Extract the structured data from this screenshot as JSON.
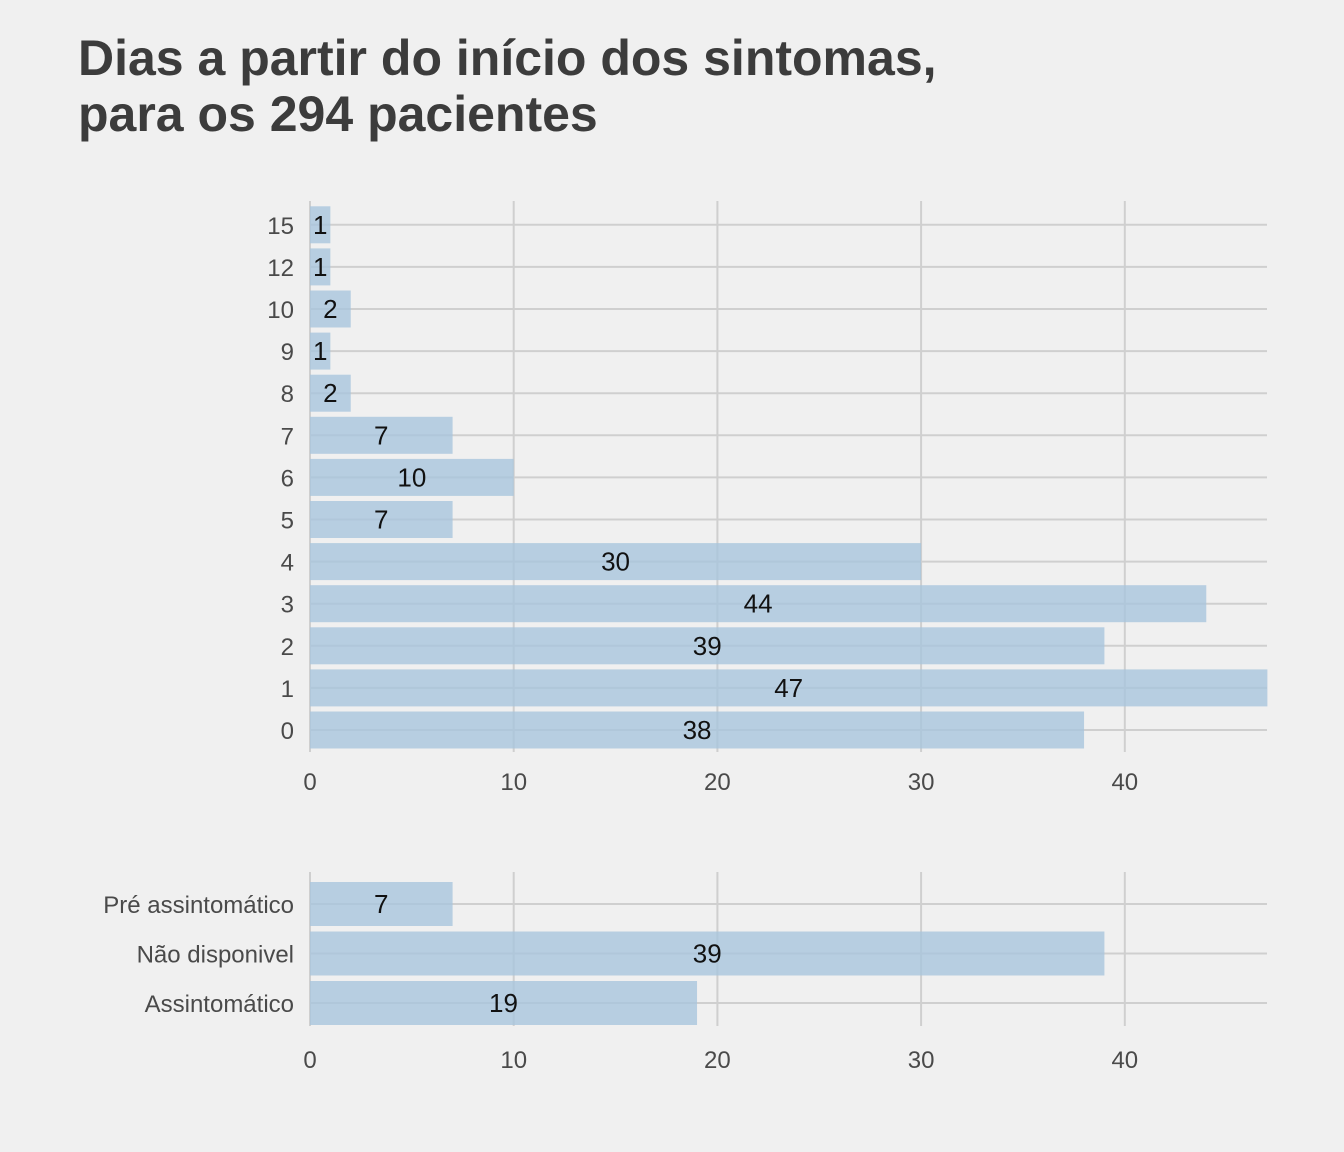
{
  "title_lines": [
    "Dias a partir do início dos sintomas,",
    "para os 294 pacientes"
  ],
  "colors": {
    "background": "#f0f0f0",
    "bar": "#a6c4dd",
    "grid": "#cfcfcf",
    "title": "#3c3c3c"
  },
  "chart_data": [
    {
      "type": "bar",
      "orientation": "horizontal",
      "categories": [
        "0",
        "1",
        "2",
        "3",
        "4",
        "5",
        "6",
        "7",
        "8",
        "9",
        "10",
        "12",
        "15"
      ],
      "values": [
        38,
        47,
        39,
        44,
        30,
        7,
        10,
        7,
        2,
        1,
        2,
        1,
        1
      ],
      "data_labels": [
        "38",
        "47",
        "39",
        "44",
        "30",
        "7",
        "10",
        "7",
        "2",
        "1",
        "2",
        "1",
        "1"
      ],
      "xticks": [
        "0",
        "10",
        "20",
        "30",
        "40"
      ],
      "xlim": [
        0,
        47
      ],
      "grid": true
    },
    {
      "type": "bar",
      "orientation": "horizontal",
      "categories": [
        "Assintomático",
        "Não disponivel",
        "Pré assintomático"
      ],
      "values": [
        19,
        39,
        7
      ],
      "data_labels": [
        "19",
        "39",
        "7"
      ],
      "xticks": [
        "0",
        "10",
        "20",
        "30",
        "40"
      ],
      "xlim": [
        0,
        47
      ],
      "grid": true
    }
  ]
}
